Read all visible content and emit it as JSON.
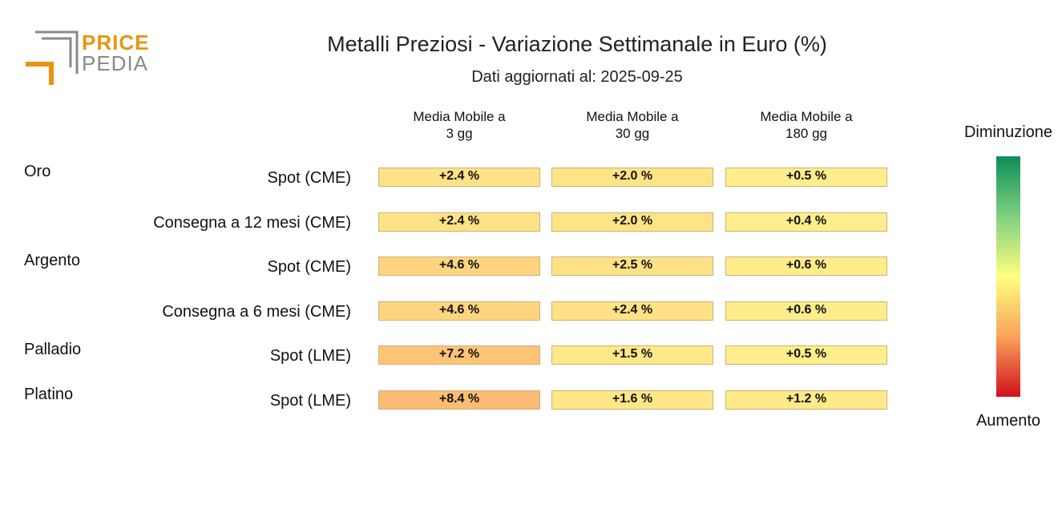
{
  "logo": {
    "word1": "PRICE",
    "word2": "PEDIA",
    "accent_color": "#e8950c",
    "gray_color": "#8a8a8a"
  },
  "title": "Metalli Preziosi - Variazione Settimanale in Euro (%)",
  "subtitle": "Dati aggiornati al: 2025-09-25",
  "legend": {
    "top_label": "Diminuzione",
    "bottom_label": "Aumento",
    "colors": [
      "#0f8c5a",
      "#7fd17f",
      "#ffff80",
      "#f9a35a",
      "#d2101e"
    ]
  },
  "chart_data": {
    "type": "heatmap",
    "columns": [
      "Media Mobile a\n3 gg",
      "Media Mobile a\n30 gg",
      "Media Mobile a\n180 gg"
    ],
    "groups": [
      "Oro",
      "Argento",
      "Palladio",
      "Platino"
    ],
    "rows": [
      {
        "group": "Oro",
        "label": "Spot (CME)",
        "values": [
          2.4,
          2.0,
          0.5
        ],
        "text": [
          "+2.4 %",
          "+2.0 %",
          "+0.5 %"
        ]
      },
      {
        "group": "",
        "label": "Consegna a 12 mesi (CME)",
        "values": [
          2.4,
          2.0,
          0.4
        ],
        "text": [
          "+2.4 %",
          "+2.0 %",
          "+0.4 %"
        ]
      },
      {
        "group": "Argento",
        "label": "Spot (CME)",
        "values": [
          4.6,
          2.5,
          0.6
        ],
        "text": [
          "+4.6 %",
          "+2.5 %",
          "+0.6 %"
        ]
      },
      {
        "group": "",
        "label": "Consegna a 6 mesi (CME)",
        "values": [
          4.6,
          2.4,
          0.6
        ],
        "text": [
          "+4.6 %",
          "+2.4 %",
          "+0.6 %"
        ]
      },
      {
        "group": "Palladio",
        "label": "Spot (LME)",
        "values": [
          7.2,
          1.5,
          0.5
        ],
        "text": [
          "+7.2 %",
          "+1.5 %",
          "+0.5 %"
        ]
      },
      {
        "group": "Platino",
        "label": "Spot (LME)",
        "values": [
          8.4,
          1.6,
          1.2
        ],
        "text": [
          "+8.4 %",
          "+1.6 %",
          "+1.2 %"
        ]
      }
    ]
  }
}
